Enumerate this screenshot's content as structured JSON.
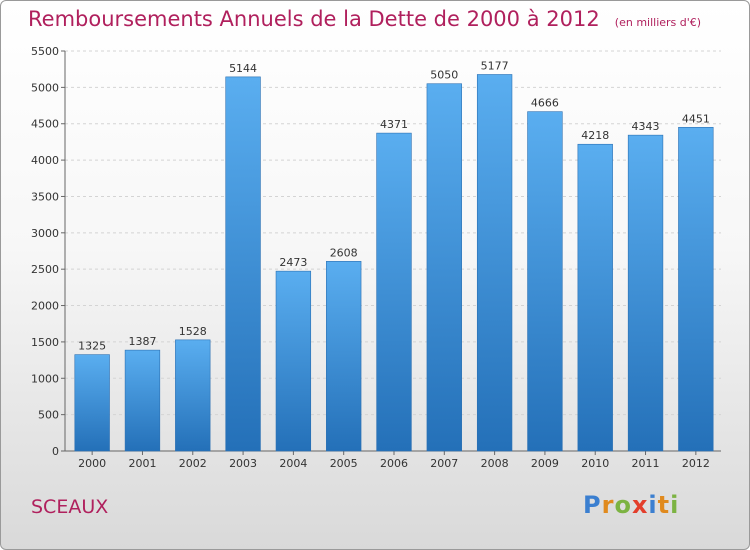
{
  "page": {
    "commune": "SCEAUX",
    "logo": {
      "letters": [
        {
          "char": "P",
          "color": "#3b7fd0"
        },
        {
          "char": "r",
          "color": "#e08a1e"
        },
        {
          "char": "o",
          "color": "#7cb342"
        },
        {
          "char": "x",
          "color": "#e33e2b"
        },
        {
          "char": "i",
          "color": "#3b7fd0"
        },
        {
          "char": "t",
          "color": "#e08a1e"
        },
        {
          "char": "i",
          "color": "#7cb342"
        }
      ]
    }
  },
  "chart_data": {
    "type": "bar",
    "title": "Remboursements Annuels de la Dette de 2000 à 2012",
    "subtitle": "(en milliers d'€)",
    "categories": [
      "2000",
      "2001",
      "2002",
      "2003",
      "2004",
      "2005",
      "2006",
      "2007",
      "2008",
      "2009",
      "2010",
      "2011",
      "2012"
    ],
    "values": [
      1325,
      1387,
      1528,
      5144,
      2473,
      2608,
      4371,
      5050,
      5177,
      4666,
      4218,
      4343,
      4451
    ],
    "ylim": [
      0,
      5500
    ],
    "yticks": [
      0,
      500,
      1000,
      1500,
      2000,
      2500,
      3000,
      3500,
      4000,
      4500,
      5000,
      5500
    ],
    "grid": true,
    "bar_color": "#3a8fd9"
  }
}
